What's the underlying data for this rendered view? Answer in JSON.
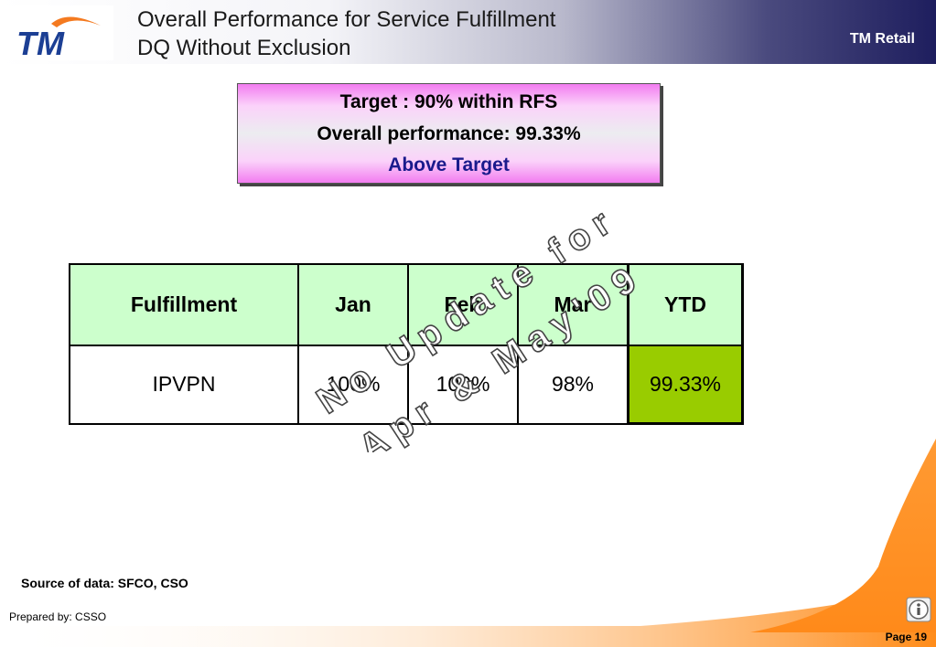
{
  "header": {
    "logo_text": "TM",
    "title_line1": "Overall Performance for Service Fulfillment",
    "title_line2": "DQ Without Exclusion",
    "brand": "TM Retail"
  },
  "target_box": {
    "target": "Target : 90% within RFS",
    "overall": "Overall performance: 99.33%",
    "status": "Above Target"
  },
  "table": {
    "headers": [
      "Fulfillment",
      "Jan",
      "Feb",
      "Mar",
      "YTD"
    ],
    "rows": [
      [
        "IPVPN",
        "100%",
        "100%",
        "98%",
        "99.33%"
      ]
    ]
  },
  "watermark": {
    "line1": "No Update for",
    "line2": "Apr & May'09"
  },
  "footer": {
    "source": "Source of data: SFCO, CSO",
    "prepared": "Prepared by: CSSO",
    "page": "Page 19"
  },
  "colors": {
    "header_dark": "#1e1e5e",
    "table_header_bg": "#ccffcc",
    "ytd_highlight": "#99cc00",
    "status_text": "#1a1a8c",
    "footer_orange": "#ff8c1a"
  }
}
